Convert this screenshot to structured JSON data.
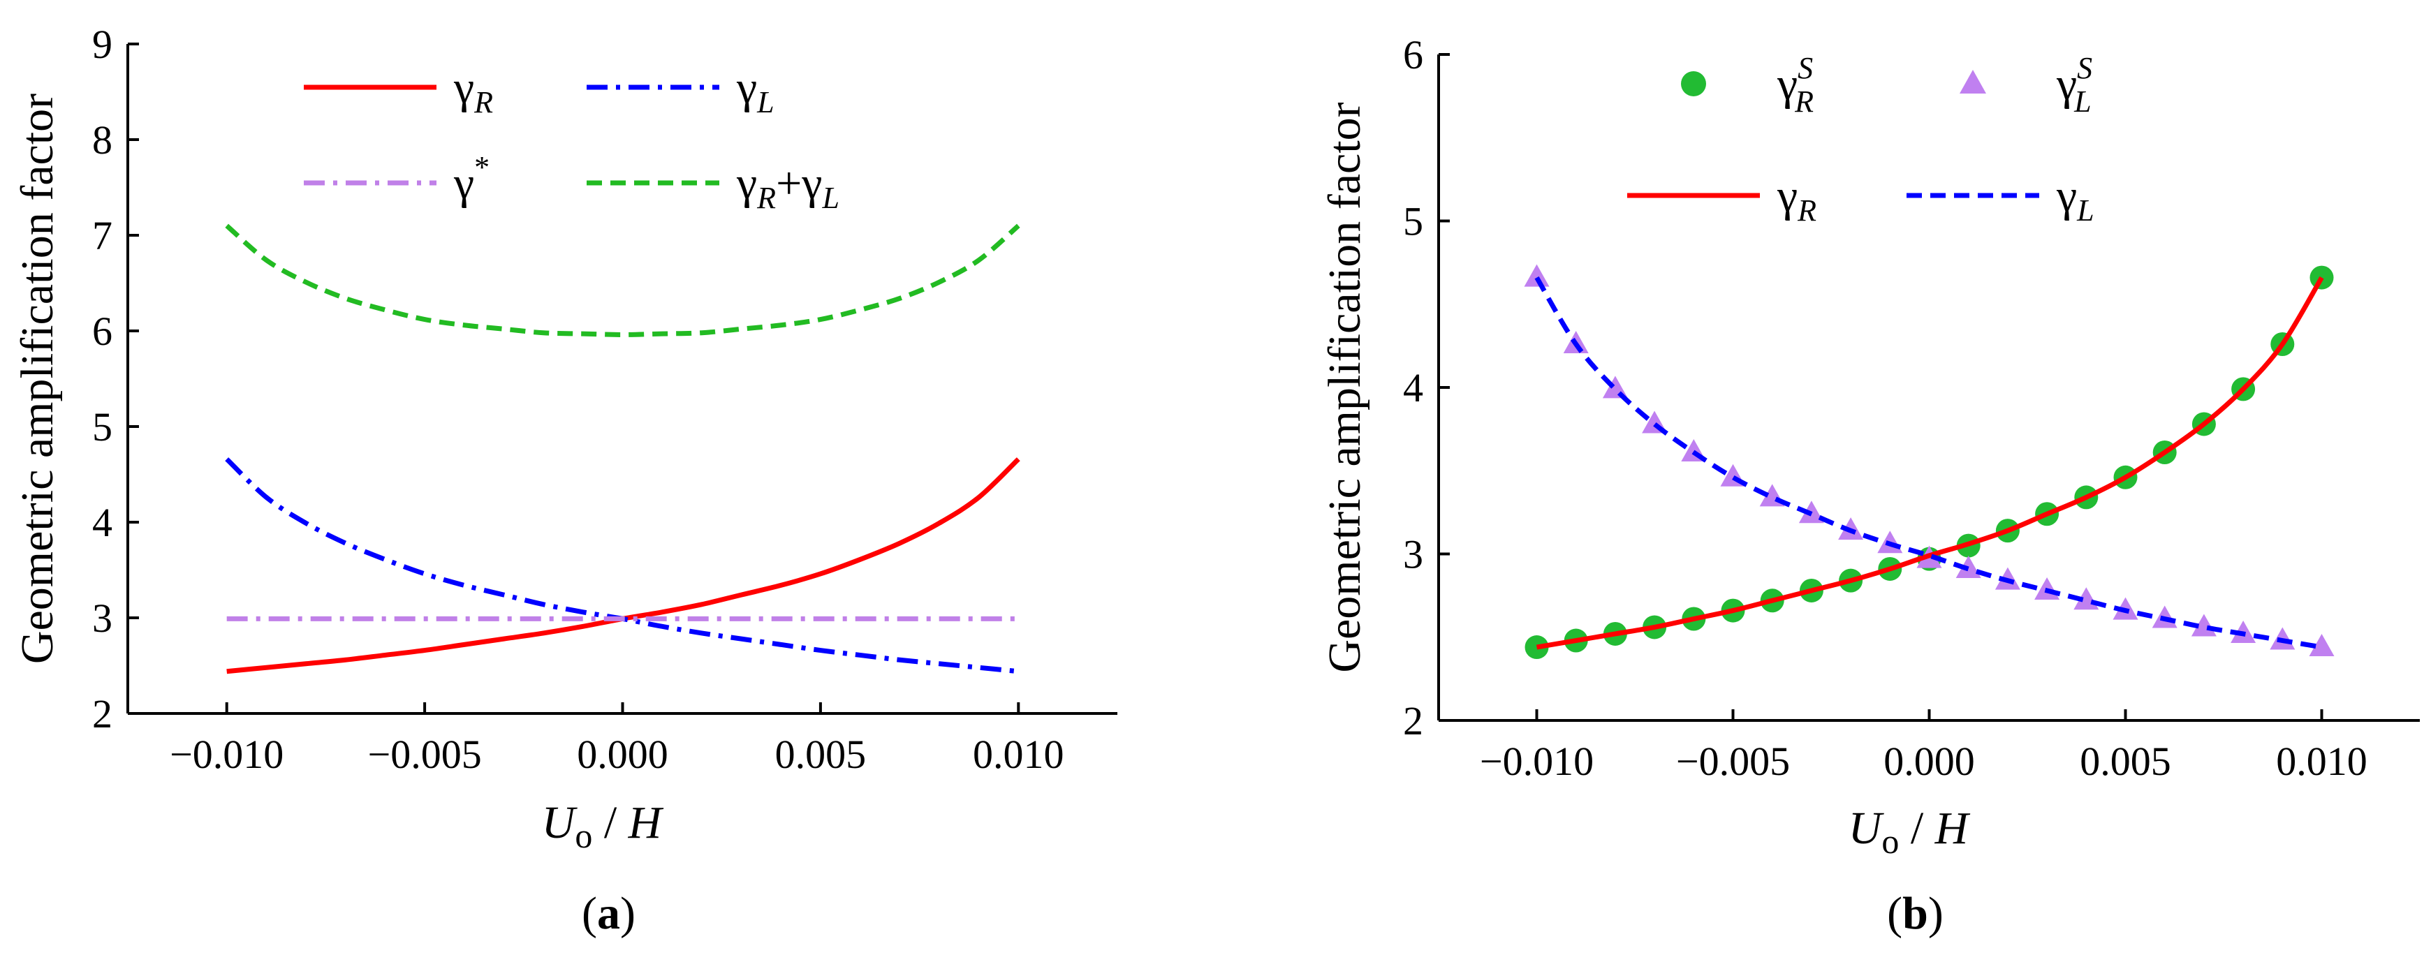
{
  "colors": {
    "gamma_R": "#ff0000",
    "gamma_L": "#0000ff",
    "gamma_star": "#c080e8",
    "gamma_sum": "#22bb22",
    "sim_R_marker": "#22bb33",
    "sim_L_marker": "#c080f0"
  },
  "chart_data": [
    {
      "panel": "a",
      "panel_label": "(a)",
      "type": "line",
      "ylabel": "Geometric amplification factor",
      "xlabel_main": "U",
      "xlabel_sub": "o",
      "xlabel_rest": " / H",
      "xlim": [
        -0.0125,
        0.0125
      ],
      "ylim": [
        2,
        9
      ],
      "xticks": [
        -0.01,
        -0.005,
        0.0,
        0.005,
        0.01
      ],
      "xtick_labels": [
        "−0.010",
        "−0.005",
        "0.000",
        "0.005",
        "0.010"
      ],
      "yticks": [
        2,
        3,
        4,
        5,
        6,
        7,
        8,
        9
      ],
      "ytick_labels": [
        "2",
        "3",
        "4",
        "5",
        "6",
        "7",
        "8",
        "9"
      ],
      "legend_position": "top",
      "x": [
        -0.01,
        -0.009,
        -0.008,
        -0.007,
        -0.006,
        -0.005,
        -0.004,
        -0.003,
        -0.002,
        -0.001,
        0.0,
        0.001,
        0.002,
        0.003,
        0.004,
        0.005,
        0.006,
        0.007,
        0.008,
        0.009,
        0.01
      ],
      "series": [
        {
          "name": "γR",
          "legend_main": "γ",
          "legend_sub": "R",
          "style": "solid",
          "color_key": "gamma_R",
          "values": [
            2.44,
            2.48,
            2.52,
            2.56,
            2.61,
            2.66,
            2.72,
            2.78,
            2.84,
            2.91,
            2.99,
            3.06,
            3.14,
            3.24,
            3.34,
            3.46,
            3.61,
            3.78,
            3.99,
            4.26,
            4.66
          ]
        },
        {
          "name": "γL",
          "legend_main": "γ",
          "legend_sub": "L",
          "style": "dashdot",
          "color_key": "gamma_L",
          "values": [
            4.66,
            4.26,
            3.99,
            3.78,
            3.61,
            3.46,
            3.34,
            3.24,
            3.14,
            3.06,
            2.99,
            2.91,
            2.84,
            2.78,
            2.72,
            2.66,
            2.61,
            2.56,
            2.52,
            2.48,
            2.44
          ]
        },
        {
          "name": "γ*",
          "legend_main": "γ",
          "legend_sup": "*",
          "style": "dashdot",
          "color_key": "gamma_star",
          "values": [
            2.99,
            2.99,
            2.99,
            2.99,
            2.99,
            2.99,
            2.99,
            2.99,
            2.99,
            2.99,
            2.99,
            2.99,
            2.99,
            2.99,
            2.99,
            2.99,
            2.99,
            2.99,
            2.99,
            2.99,
            2.99
          ]
        },
        {
          "name": "γR+γL",
          "legend_main": "γ",
          "legend_sub": "R",
          "legend_plus": "+",
          "legend_main2": "γ",
          "legend_sub2": "L",
          "style": "dashed",
          "color_key": "gamma_sum",
          "values": [
            7.1,
            6.74,
            6.51,
            6.34,
            6.22,
            6.12,
            6.06,
            6.02,
            5.98,
            5.97,
            5.96,
            5.97,
            5.98,
            6.02,
            6.06,
            6.12,
            6.22,
            6.34,
            6.51,
            6.74,
            7.1
          ]
        }
      ]
    },
    {
      "panel": "b",
      "panel_label": "(b)",
      "type": "line",
      "ylabel": "Geometric amplification factor",
      "xlabel_main": "U",
      "xlabel_sub": "o",
      "xlabel_rest": " / H",
      "xlim": [
        -0.0125,
        0.0125
      ],
      "ylim": [
        2,
        6
      ],
      "xticks": [
        -0.01,
        -0.005,
        0.0,
        0.005,
        0.01
      ],
      "xtick_labels": [
        "−0.010",
        "−0.005",
        "0.000",
        "0.005",
        "0.010"
      ],
      "yticks": [
        2,
        3,
        4,
        5,
        6
      ],
      "ytick_labels": [
        "2",
        "3",
        "4",
        "5",
        "6"
      ],
      "legend_position": "top",
      "x": [
        -0.01,
        -0.009,
        -0.008,
        -0.007,
        -0.006,
        -0.005,
        -0.004,
        -0.003,
        -0.002,
        -0.001,
        0.0,
        0.001,
        0.002,
        0.003,
        0.004,
        0.005,
        0.006,
        0.007,
        0.008,
        0.009,
        0.01
      ],
      "series": [
        {
          "name": "γR^S",
          "legend_main": "γ",
          "legend_sub": "R",
          "legend_sup": "S",
          "style": "circle",
          "color_key": "sim_R_marker",
          "values": [
            2.44,
            2.48,
            2.52,
            2.56,
            2.61,
            2.66,
            2.72,
            2.78,
            2.84,
            2.91,
            2.97,
            3.05,
            3.14,
            3.24,
            3.34,
            3.46,
            3.61,
            3.78,
            3.99,
            4.26,
            4.66
          ]
        },
        {
          "name": "γL^S",
          "legend_main": "γ",
          "legend_sub": "L",
          "legend_sup": "S",
          "style": "triangle",
          "color_key": "sim_L_marker",
          "values": [
            4.66,
            4.26,
            3.99,
            3.78,
            3.61,
            3.46,
            3.34,
            3.24,
            3.14,
            3.06,
            2.97,
            2.91,
            2.84,
            2.78,
            2.72,
            2.66,
            2.61,
            2.56,
            2.52,
            2.48,
            2.44
          ]
        },
        {
          "name": "γR",
          "legend_main": "γ",
          "legend_sub": "R",
          "style": "solid",
          "color_key": "gamma_R",
          "values": [
            2.44,
            2.48,
            2.52,
            2.56,
            2.61,
            2.66,
            2.72,
            2.78,
            2.84,
            2.91,
            2.99,
            3.06,
            3.14,
            3.24,
            3.34,
            3.46,
            3.61,
            3.78,
            3.99,
            4.26,
            4.66
          ]
        },
        {
          "name": "γL",
          "legend_main": "γ",
          "legend_sub": "L",
          "style": "dashed",
          "color_key": "gamma_L",
          "values": [
            4.66,
            4.26,
            3.99,
            3.78,
            3.61,
            3.46,
            3.34,
            3.24,
            3.14,
            3.06,
            2.99,
            2.91,
            2.84,
            2.78,
            2.72,
            2.66,
            2.61,
            2.56,
            2.52,
            2.48,
            2.44
          ]
        }
      ]
    }
  ]
}
